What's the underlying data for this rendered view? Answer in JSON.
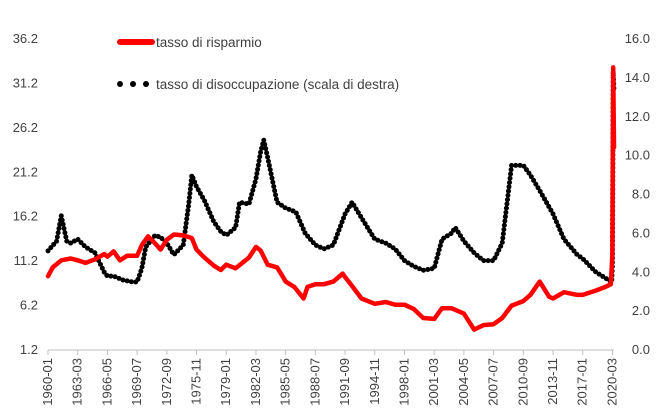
{
  "chart_data": {
    "type": "line",
    "title": "",
    "legend": {
      "placement": "top-left",
      "entries": [
        {
          "label": "tasso di risparmio",
          "style": "solid-line",
          "color": "#ff0000"
        },
        {
          "label": "tasso di disoccupazione (scala di destra)",
          "style": "dotted-line",
          "color": "#000000"
        }
      ]
    },
    "x_axis": {
      "type": "date",
      "range": [
        "1960-01",
        "2020-05"
      ],
      "tick_labels": [
        "1960-01",
        "1963-03",
        "1966-05",
        "1969-07",
        "1972-09",
        "1975-11",
        "1979-01",
        "1982-03",
        "1985-05",
        "1988-07",
        "1991-09",
        "1994-11",
        "1998-01",
        "2001-03",
        "2004-05",
        "2007-07",
        "2010-09",
        "2013-11",
        "2017-01",
        "2020-03"
      ]
    },
    "y_axis_left": {
      "range": [
        1.2,
        36.2
      ],
      "tick_labels": [
        "1.2",
        "6.2",
        "11.2",
        "16.2",
        "21.2",
        "26.2",
        "31.2",
        "36.2"
      ]
    },
    "y_axis_right": {
      "range": [
        0.0,
        16.0
      ],
      "tick_labels": [
        "0.0",
        "2.0",
        "4.0",
        "6.0",
        "8.0",
        "10.0",
        "12.0",
        "14.0",
        "16.0"
      ]
    },
    "grid": false,
    "series": [
      {
        "name": "tasso di risparmio",
        "axis": "left",
        "color": "#ff0000",
        "points": [
          [
            "1960-01",
            9.5
          ],
          [
            "1960-07",
            10.5
          ],
          [
            "1961-06",
            11.3
          ],
          [
            "1962-06",
            11.5
          ],
          [
            "1963-03",
            11.3
          ],
          [
            "1964-01",
            11.0
          ],
          [
            "1965-01",
            11.4
          ],
          [
            "1966-01",
            12.0
          ],
          [
            "1966-05",
            11.7
          ],
          [
            "1967-01",
            12.3
          ],
          [
            "1967-09",
            11.3
          ],
          [
            "1968-06",
            11.8
          ],
          [
            "1969-07",
            11.8
          ],
          [
            "1970-01",
            13.0
          ],
          [
            "1970-09",
            14.0
          ],
          [
            "1971-06",
            13.2
          ],
          [
            "1972-01",
            12.5
          ],
          [
            "1972-09",
            13.6
          ],
          [
            "1973-06",
            14.2
          ],
          [
            "1974-06",
            14.1
          ],
          [
            "1975-05",
            13.8
          ],
          [
            "1975-11",
            12.5
          ],
          [
            "1976-09",
            11.6
          ],
          [
            "1977-09",
            10.7
          ],
          [
            "1978-06",
            10.2
          ],
          [
            "1979-01",
            10.8
          ],
          [
            "1980-01",
            10.4
          ],
          [
            "1981-06",
            11.6
          ],
          [
            "1982-03",
            12.8
          ],
          [
            "1982-09",
            12.4
          ],
          [
            "1983-06",
            10.8
          ],
          [
            "1984-06",
            10.5
          ],
          [
            "1985-01",
            9.5
          ],
          [
            "1985-05",
            8.9
          ],
          [
            "1986-04",
            8.3
          ],
          [
            "1987-04",
            7.0
          ],
          [
            "1987-09",
            8.3
          ],
          [
            "1988-07",
            8.6
          ],
          [
            "1989-06",
            8.6
          ],
          [
            "1990-06",
            8.9
          ],
          [
            "1991-06",
            9.8
          ],
          [
            "1991-09",
            9.4
          ],
          [
            "1992-06",
            8.4
          ],
          [
            "1993-06",
            7.0
          ],
          [
            "1994-11",
            6.4
          ],
          [
            "1996-01",
            6.6
          ],
          [
            "1997-01",
            6.3
          ],
          [
            "1998-01",
            6.3
          ],
          [
            "1999-01",
            5.8
          ],
          [
            "2000-01",
            4.8
          ],
          [
            "2001-03",
            4.7
          ],
          [
            "2002-01",
            5.9
          ],
          [
            "2003-01",
            5.9
          ],
          [
            "2004-05",
            5.3
          ],
          [
            "2005-06",
            3.5
          ],
          [
            "2006-06",
            4.0
          ],
          [
            "2007-07",
            4.1
          ],
          [
            "2008-06",
            4.8
          ],
          [
            "2009-06",
            6.2
          ],
          [
            "2010-09",
            6.7
          ],
          [
            "2011-06",
            7.4
          ],
          [
            "2012-06",
            8.9
          ],
          [
            "2013-06",
            7.2
          ],
          [
            "2013-11",
            7.0
          ],
          [
            "2015-01",
            7.7
          ],
          [
            "2016-06",
            7.4
          ],
          [
            "2017-01",
            7.4
          ],
          [
            "2018-06",
            7.9
          ],
          [
            "2019-06",
            8.3
          ],
          [
            "2020-01",
            8.6
          ],
          [
            "2020-03",
            12.0
          ],
          [
            "2020-04",
            33.0
          ],
          [
            "2020-05",
            24.0
          ]
        ]
      },
      {
        "name": "tasso di disoccupazione (scala di destra)",
        "axis": "right",
        "color": "#000000",
        "points": [
          [
            "1960-01",
            5.1
          ],
          [
            "1960-12",
            5.6
          ],
          [
            "1961-06",
            6.9
          ],
          [
            "1962-01",
            5.6
          ],
          [
            "1962-06",
            5.5
          ],
          [
            "1963-03",
            5.7
          ],
          [
            "1964-01",
            5.3
          ],
          [
            "1965-01",
            5.0
          ],
          [
            "1966-01",
            4.0
          ],
          [
            "1966-05",
            3.8
          ],
          [
            "1967-01",
            3.8
          ],
          [
            "1968-01",
            3.6
          ],
          [
            "1969-01",
            3.5
          ],
          [
            "1969-07",
            3.5
          ],
          [
            "1970-01",
            4.2
          ],
          [
            "1970-06",
            5.3
          ],
          [
            "1971-06",
            5.9
          ],
          [
            "1972-01",
            5.8
          ],
          [
            "1972-09",
            5.5
          ],
          [
            "1973-06",
            4.9
          ],
          [
            "1974-06",
            5.4
          ],
          [
            "1975-01",
            7.5
          ],
          [
            "1975-05",
            9.0
          ],
          [
            "1975-11",
            8.4
          ],
          [
            "1976-09",
            7.7
          ],
          [
            "1977-09",
            6.6
          ],
          [
            "1978-06",
            6.1
          ],
          [
            "1979-01",
            5.9
          ],
          [
            "1980-01",
            6.3
          ],
          [
            "1980-06",
            7.6
          ],
          [
            "1981-06",
            7.5
          ],
          [
            "1982-03",
            8.8
          ],
          [
            "1982-09",
            10.2
          ],
          [
            "1983-01",
            10.8
          ],
          [
            "1983-06",
            9.9
          ],
          [
            "1984-06",
            7.6
          ],
          [
            "1985-05",
            7.3
          ],
          [
            "1986-06",
            7.1
          ],
          [
            "1987-06",
            6.0
          ],
          [
            "1988-07",
            5.4
          ],
          [
            "1989-06",
            5.2
          ],
          [
            "1990-06",
            5.4
          ],
          [
            "1991-09",
            7.0
          ],
          [
            "1992-06",
            7.6
          ],
          [
            "1993-06",
            6.8
          ],
          [
            "1994-11",
            5.7
          ],
          [
            "1996-01",
            5.5
          ],
          [
            "1997-01",
            5.2
          ],
          [
            "1998-01",
            4.6
          ],
          [
            "1999-01",
            4.3
          ],
          [
            "2000-01",
            4.1
          ],
          [
            "2001-03",
            4.2
          ],
          [
            "2002-01",
            5.7
          ],
          [
            "2003-01",
            6.0
          ],
          [
            "2003-06",
            6.3
          ],
          [
            "2004-05",
            5.6
          ],
          [
            "2005-06",
            5.0
          ],
          [
            "2006-06",
            4.6
          ],
          [
            "2007-07",
            4.6
          ],
          [
            "2008-06",
            5.5
          ],
          [
            "2009-06",
            9.5
          ],
          [
            "2010-09",
            9.5
          ],
          [
            "2011-06",
            9.0
          ],
          [
            "2012-06",
            8.2
          ],
          [
            "2013-11",
            7.0
          ],
          [
            "2015-01",
            5.7
          ],
          [
            "2016-06",
            4.9
          ],
          [
            "2017-01",
            4.7
          ],
          [
            "2018-06",
            4.0
          ],
          [
            "2019-06",
            3.7
          ],
          [
            "2020-02",
            3.5
          ],
          [
            "2020-03",
            4.4
          ],
          [
            "2020-04",
            14.3
          ],
          [
            "2020-05",
            13.3
          ]
        ]
      }
    ]
  }
}
